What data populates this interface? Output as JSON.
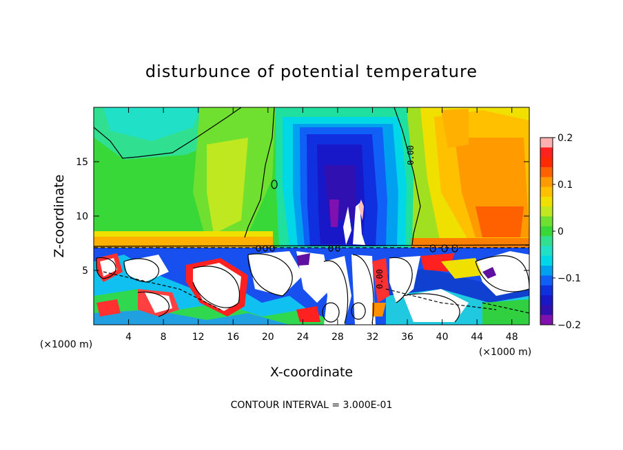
{
  "chart_data": {
    "type": "heatmap",
    "title": "disturbunce of potential temperature",
    "xlabel": "X-coordinate",
    "ylabel": "Z-coordinate",
    "x_unit": "(×1000 m)",
    "x_unit_right": "(×1000 m)",
    "xlim": [
      0,
      50
    ],
    "ylim": [
      0,
      20
    ],
    "x_ticks": [
      4,
      8,
      12,
      16,
      20,
      24,
      28,
      32,
      36,
      40,
      44,
      48
    ],
    "y_ticks": [
      5,
      10,
      15
    ],
    "colorbar": {
      "min": -0.2,
      "max": 0.2,
      "tick_labels": [
        "0.2",
        "0.1",
        "0",
        "−0.1",
        "−0.2"
      ],
      "tick_values": [
        0.2,
        0.1,
        0,
        -0.1,
        -0.2
      ]
    },
    "contour_label": "0.00",
    "contour_interval_text": "CONTOUR INTERVAL = 3.000E-01"
  }
}
